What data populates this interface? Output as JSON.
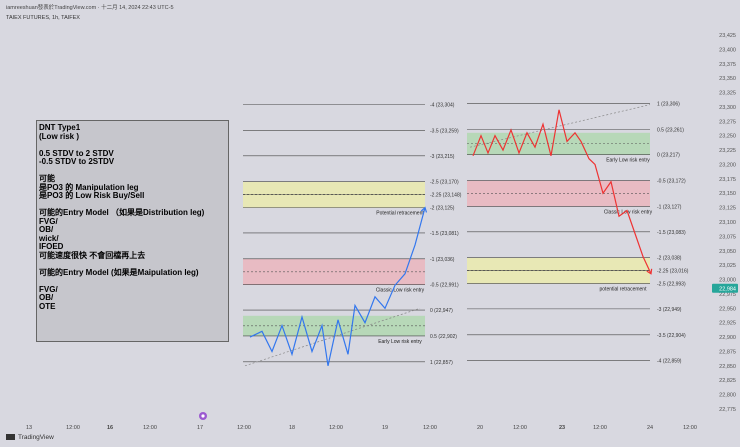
{
  "header": {
    "attribution": "iamreeshuan發表於TradingView.com · 十二月 14, 2024 22:43 UTC-5",
    "symbol": "TAIEX FUTURES, 1h, TAIFEX"
  },
  "note_text": "DNT Type1\n(Low risk )\n\n0.5 STDV to 2 STDV\n-0.5 STDV to 2STDV\n\n可能\n是PO3 的 Manipulation leg\n是PO3 的 Low Risk Buy/Sell\n\n可能的Entry Model （如果是Distribution leg)\nFVG/\nOB/\nwick/\nIFOED\n可能速度很快 不會回檔再上去\n\n可能的Entry Model (如果是Maipulation leg)\n\nFVG/\nOB/\nOTE",
  "footer": {
    "brand": "TradingView"
  },
  "colors": {
    "background": "#d8d8e0",
    "green_zone": "#b4d8b4",
    "yellow_zone": "#eaeab0",
    "red_zone": "#eab8c0",
    "blue_line": "#3377ee",
    "red_line": "#ee3333",
    "price_badge": "#26a69a"
  },
  "icons": {
    "time_marker": "circle-icon"
  },
  "chart_data": {
    "type": "line",
    "y_axis": {
      "ticks": [
        22775,
        22800,
        22825,
        22850,
        22875,
        22900,
        22925,
        22950,
        22975,
        23000,
        23025,
        23050,
        23075,
        23100,
        23125,
        23150,
        23175,
        23200,
        23225,
        23250,
        23275,
        23300,
        23325,
        23350,
        23375,
        23400,
        23425
      ],
      "range": [
        22763,
        23432
      ],
      "position": "right"
    },
    "last_price": "22,984",
    "x_axis": {
      "ticks": [
        "13",
        "12:00",
        "16",
        "12:00",
        "17",
        "12:00",
        "18",
        "12:00",
        "19",
        "12:00",
        "20",
        "12:00",
        "23",
        "12:00",
        "24",
        "12:00"
      ],
      "bold_ticks": [
        "16",
        "23"
      ]
    },
    "series": [
      {
        "color": "blue",
        "points": [
          [
            0,
            22900
          ],
          [
            12,
            22910
          ],
          [
            22,
            22875
          ],
          [
            32,
            22920
          ],
          [
            42,
            22870
          ],
          [
            52,
            22935
          ],
          [
            62,
            22875
          ],
          [
            72,
            22920
          ],
          [
            78,
            22850
          ],
          [
            88,
            22930
          ],
          [
            98,
            22870
          ],
          [
            105,
            22955
          ],
          [
            115,
            22925
          ],
          [
            125,
            22970
          ],
          [
            135,
            22950
          ],
          [
            145,
            22990
          ],
          [
            155,
            23010
          ],
          [
            165,
            23060
          ],
          [
            175,
            23125
          ]
        ]
      },
      {
        "color": "red",
        "points": [
          [
            0,
            23215
          ],
          [
            8,
            23250
          ],
          [
            15,
            23220
          ],
          [
            22,
            23250
          ],
          [
            30,
            23225
          ],
          [
            38,
            23260
          ],
          [
            46,
            23220
          ],
          [
            54,
            23255
          ],
          [
            62,
            23230
          ],
          [
            70,
            23270
          ],
          [
            78,
            23215
          ],
          [
            86,
            23295
          ],
          [
            94,
            23240
          ],
          [
            102,
            23255
          ],
          [
            108,
            23240
          ],
          [
            116,
            23210
          ],
          [
            122,
            23200
          ],
          [
            130,
            23150
          ],
          [
            138,
            23170
          ],
          [
            146,
            23110
          ],
          [
            154,
            23120
          ],
          [
            162,
            23080
          ],
          [
            170,
            23040
          ],
          [
            178,
            23010
          ]
        ]
      }
    ],
    "fib_left": {
      "levels": [
        {
          "label": "-4 (23,304)",
          "value": 23304
        },
        {
          "label": "-3.5 (23,259)",
          "value": 23259
        },
        {
          "label": "-3 (23,215)",
          "value": 23215
        },
        {
          "label": "-2.5 (23,170)",
          "value": 23170
        },
        {
          "label": "-2.25 (23,148)",
          "value": 23148
        },
        {
          "label": "-2 (23,125)",
          "value": 23125
        },
        {
          "label": "-1.5 (23,081)",
          "value": 23081
        },
        {
          "label": "-1 (23,036)",
          "value": 23036
        },
        {
          "label": "-0.5 (22,991)",
          "value": 22991
        },
        {
          "label": "0 (22,947)",
          "value": 22947
        },
        {
          "label": "0.5 (22,902)",
          "value": 22902
        },
        {
          "label": "1 (22,857)",
          "value": 22857
        }
      ],
      "zones": [
        {
          "from": 23125,
          "to": 23170,
          "color": "yellow"
        },
        {
          "from": 22991,
          "to": 23036,
          "color": "red"
        },
        {
          "from": 22902,
          "to": 22937,
          "color": "green"
        }
      ],
      "annotations": [
        {
          "text": "Potential retracement",
          "value": 23120
        },
        {
          "text": "Classic Low risk entry",
          "value": 22986
        },
        {
          "text": "Early Low risk entry",
          "value": 22897
        }
      ]
    },
    "fib_right": {
      "levels": [
        {
          "label": "1 (23,306)",
          "value": 23306
        },
        {
          "label": "0.5 (23,261)",
          "value": 23261
        },
        {
          "label": "0 (23,217)",
          "value": 23217
        },
        {
          "label": "-0.5 (23,172)",
          "value": 23172
        },
        {
          "label": "-1 (23,127)",
          "value": 23127
        },
        {
          "label": "-1.5 (23,083)",
          "value": 23083
        },
        {
          "label": "-2 (23,038)",
          "value": 23038
        },
        {
          "label": "-2.25 (23,016)",
          "value": 23016
        },
        {
          "label": "-2.5 (22,993)",
          "value": 22993
        },
        {
          "label": "-3 (22,949)",
          "value": 22949
        },
        {
          "label": "-3.5 (22,904)",
          "value": 22904
        },
        {
          "label": "-4 (22,859)",
          "value": 22859
        }
      ],
      "zones": [
        {
          "from": 23217,
          "to": 23255,
          "color": "green"
        },
        {
          "from": 23127,
          "to": 23172,
          "color": "red"
        },
        {
          "from": 22993,
          "to": 23038,
          "color": "yellow"
        }
      ],
      "annotations": [
        {
          "text": "Early Low risk entry",
          "value": 23212
        },
        {
          "text": "Classic Low risk entry",
          "value": 23122
        },
        {
          "text": "potential retracement",
          "value": 22988
        }
      ]
    }
  }
}
